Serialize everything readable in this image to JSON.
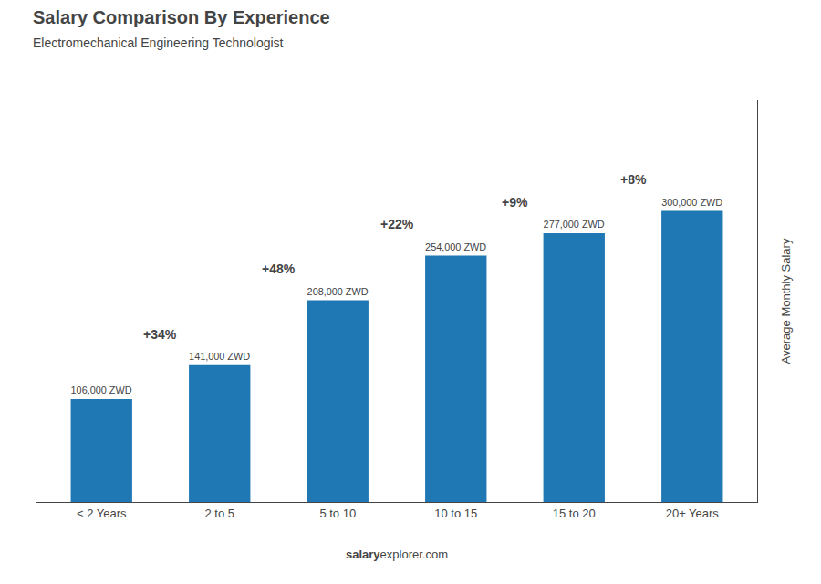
{
  "chart_data": {
    "type": "bar",
    "title": "Salary Comparison By Experience",
    "subtitle": "Electromechanical Engineering Technologist",
    "categories": [
      "< 2 Years",
      "2 to 5",
      "5 to 10",
      "10 to 15",
      "15 to 20",
      "20+ Years"
    ],
    "values": [
      106000,
      141000,
      208000,
      254000,
      277000,
      300000
    ],
    "value_labels": [
      "106,000 ZWD",
      "141,000 ZWD",
      "208,000 ZWD",
      "254,000 ZWD",
      "277,000 ZWD",
      "300,000 ZWD"
    ],
    "data_labels": true,
    "ylabel": "Average Monthly Salary",
    "ylim": [
      0,
      414000
    ],
    "tick_labels": "x",
    "grid": false,
    "annotations": [
      "+34%",
      "+48%",
      "+22%",
      "+9%",
      "+8%"
    ],
    "watermark": [
      "salary",
      "explorer.com"
    ]
  }
}
